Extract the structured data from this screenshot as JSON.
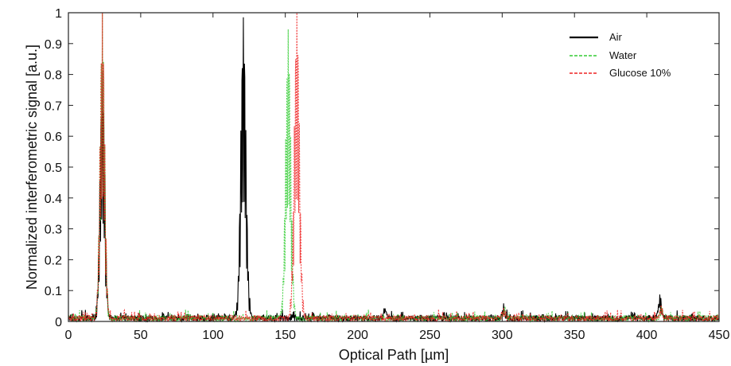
{
  "chart_data": {
    "type": "line",
    "title": "",
    "xlabel": "Optical Path [µm]",
    "ylabel": "Normalized interferometric signal [a.u.]",
    "xlim": [
      0,
      450
    ],
    "ylim": [
      0,
      1
    ],
    "xticks": [
      "0",
      "50",
      "100",
      "150",
      "200",
      "250",
      "300",
      "350",
      "400",
      "450"
    ],
    "yticks": [
      "0",
      "0.1",
      "0.2",
      "0.3",
      "0.4",
      "0.5",
      "0.6",
      "0.7",
      "0.8",
      "0.9",
      "1"
    ],
    "grid": false,
    "legend_position": "top-right",
    "baseline_noise": 0.02,
    "series": [
      {
        "name": "Air",
        "color": "#000000",
        "style": "solid",
        "peaks": [
          {
            "x": 23.5,
            "height": 0.8,
            "width": 1.6
          },
          {
            "x": 121,
            "height": 0.97,
            "width": 1.8
          },
          {
            "x": 219,
            "height": 0.04,
            "width": 0.8
          },
          {
            "x": 301,
            "height": 0.04,
            "width": 0.8
          },
          {
            "x": 409,
            "height": 0.07,
            "width": 1.0
          }
        ]
      },
      {
        "name": "Water",
        "color": "#33cc33",
        "style": "dashed",
        "peaks": [
          {
            "x": 23.5,
            "height": 1.0,
            "width": 1.6
          },
          {
            "x": 152,
            "height": 0.93,
            "width": 1.8
          },
          {
            "x": 301,
            "height": 0.03,
            "width": 0.8
          },
          {
            "x": 410,
            "height": 0.04,
            "width": 0.8
          }
        ]
      },
      {
        "name": "Glucose 10%",
        "color": "#ee2222",
        "style": "dashed",
        "peaks": [
          {
            "x": 23.5,
            "height": 1.0,
            "width": 1.6
          },
          {
            "x": 158,
            "height": 1.0,
            "width": 1.8
          },
          {
            "x": 301,
            "height": 0.03,
            "width": 0.8
          },
          {
            "x": 410,
            "height": 0.04,
            "width": 0.8
          }
        ]
      }
    ]
  }
}
